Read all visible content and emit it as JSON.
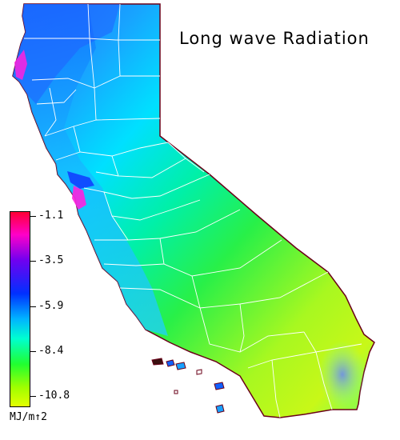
{
  "title": "Long wave Radiation",
  "units": "MJ/m↑2",
  "colors": {
    "scale_stops": [
      "#ff0030",
      "#ff00c8",
      "#7000f0",
      "#0030ff",
      "#00b4ff",
      "#00ffd0",
      "#20ff30",
      "#a0ff00",
      "#e6ff00"
    ],
    "county_lines": "#ffffff",
    "coast_outline": "#6a0018",
    "land_north": "#1e6cff",
    "land_coast": "#18b8ff",
    "land_central": "#00e8b8",
    "land_valley": "#28f048",
    "land_desert": "#b8f818",
    "land_southeast": "#7a9cf0",
    "hotspot": "#ff20e0"
  },
  "legend": {
    "ticks": [
      {
        "label": "-1.1",
        "position": 0.0
      },
      {
        "label": "-3.5",
        "position": 0.25
      },
      {
        "label": "-5.9",
        "position": 0.5
      },
      {
        "label": "-8.4",
        "position": 0.75
      },
      {
        "label": "-10.8",
        "position": 1.0
      }
    ]
  }
}
